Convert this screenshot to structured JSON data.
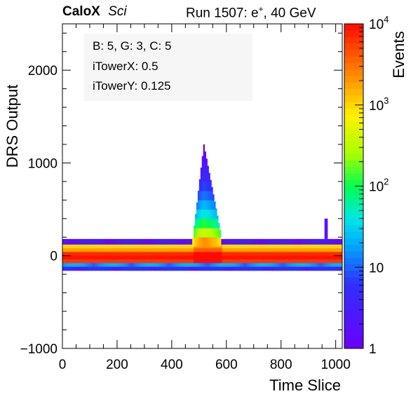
{
  "header": {
    "brand": "CaloX",
    "subtitle": "Sci",
    "run_prefix": "Run 1507: e",
    "run_sup": "+",
    "run_suffix": ", 40 GeV"
  },
  "info_box": {
    "line1": "B: 5, G: 3, C: 5",
    "line2": "iTowerX: 0.5",
    "line3": "iTowerY: 0.125"
  },
  "chart_data": {
    "type": "heatmap",
    "xlabel": "Time Slice",
    "ylabel": "DRS Output",
    "zlabel": "Events",
    "xlim": [
      0,
      1024
    ],
    "ylim": [
      -1000,
      2500
    ],
    "zlim": [
      1,
      10000
    ],
    "z_scale": "log",
    "x_ticks": [
      0,
      200,
      400,
      600,
      800,
      1000
    ],
    "x_tick_labels": [
      "0",
      "200",
      "400",
      "600",
      "800",
      "1000"
    ],
    "y_ticks": [
      -1000,
      0,
      1000,
      2000
    ],
    "y_tick_labels": [
      "−1000",
      "0",
      "1000",
      "2000"
    ],
    "z_tick_labels": [
      {
        "base": "1",
        "exp": ""
      },
      {
        "base": "10",
        "exp": ""
      },
      {
        "base": "10",
        "exp": "2"
      },
      {
        "base": "10",
        "exp": "3"
      },
      {
        "base": "10",
        "exp": "4"
      }
    ],
    "baseline_rows": [
      {
        "y_low": 120,
        "y_high": 180,
        "events": 2
      },
      {
        "y_low": 80,
        "y_high": 120,
        "events": 1000
      },
      {
        "y_low": 40,
        "y_high": 80,
        "events": 1800
      },
      {
        "y_low": 0,
        "y_high": 40,
        "events": 7000
      },
      {
        "y_low": -40,
        "y_high": 0,
        "events": 9000
      },
      {
        "y_low": -80,
        "y_high": -40,
        "events": 6000
      },
      {
        "y_low": -120,
        "y_high": -80,
        "events": 15
      },
      {
        "y_low": -160,
        "y_high": -120,
        "events": 4
      }
    ],
    "pulse": {
      "x_start": 475,
      "x_end": 580,
      "x_peak": 515,
      "y_peak": 1200,
      "profile": [
        {
          "y_low": 100,
          "y_high": 200,
          "events": 1500
        },
        {
          "y_low": 200,
          "y_high": 300,
          "events": 250
        },
        {
          "y_low": 300,
          "y_high": 400,
          "events": 80
        },
        {
          "y_low": 400,
          "y_high": 500,
          "events": 30
        },
        {
          "y_low": 500,
          "y_high": 600,
          "events": 15
        },
        {
          "y_low": 600,
          "y_high": 700,
          "events": 8
        },
        {
          "y_low": 700,
          "y_high": 800,
          "events": 5
        },
        {
          "y_low": 800,
          "y_high": 900,
          "events": 3
        },
        {
          "y_low": 900,
          "y_high": 1000,
          "events": 2
        },
        {
          "y_low": 1000,
          "y_high": 1250,
          "events": 1
        }
      ]
    },
    "late_bump": {
      "x": 965,
      "y_high": 400,
      "events": 2
    }
  }
}
